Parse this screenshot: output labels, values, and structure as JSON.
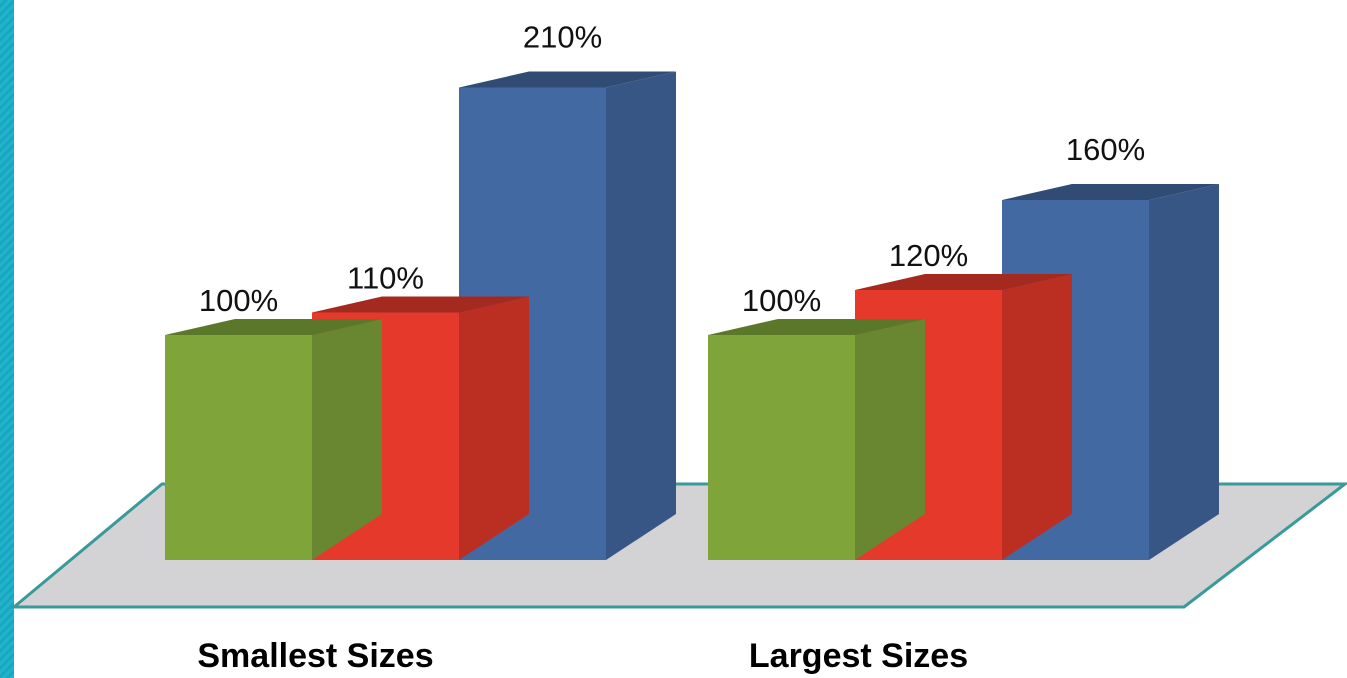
{
  "chart_data": {
    "type": "bar",
    "categories": [
      "Smallest Sizes",
      "Largest Sizes"
    ],
    "series": [
      {
        "values": [
          100,
          100
        ],
        "color": "#7fa53a"
      },
      {
        "values": [
          110,
          120
        ],
        "color": "#e4392b"
      },
      {
        "values": [
          210,
          160
        ],
        "color": "#4369a3"
      }
    ],
    "value_labels": [
      [
        "100%",
        "100%"
      ],
      [
        "110%",
        "120%"
      ],
      [
        "210%",
        "160%"
      ]
    ],
    "title": "",
    "xlabel": "",
    "ylabel": "",
    "ylim": [
      0,
      220
    ],
    "grid": false,
    "legend": "none",
    "style": "3d",
    "colors": {
      "floor": "#d3d2d4",
      "floor_edge": "#3a9a9a",
      "accent_stripe": "#22b3cc"
    }
  }
}
